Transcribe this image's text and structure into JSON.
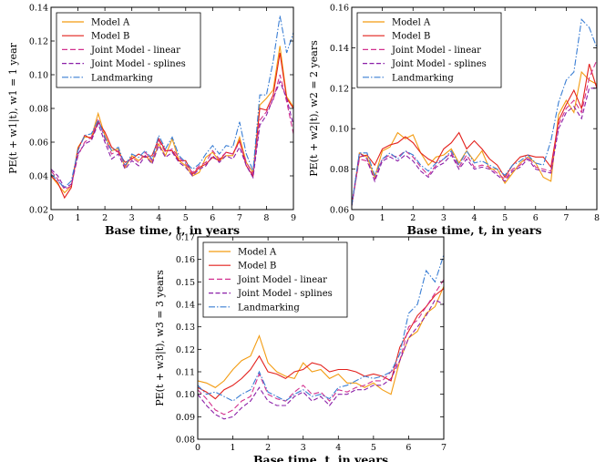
{
  "figure": {
    "style": {
      "colors": {
        "Model A": "#f39c12",
        "Model B": "#e3201c",
        "Joint Model - linear": "#d2318f",
        "Joint Model - splines": "#8b1fa8",
        "Landmarking": "#3a7ed4"
      },
      "dashes": {
        "Model A": "",
        "Model B": "",
        "Joint Model - linear": "6,3",
        "Joint Model - splines": "5,2.5",
        "Landmarking": "7,2,1.5,2"
      }
    }
  },
  "chart_data": [
    {
      "type": "line",
      "xlabel": "Base time, t, in years",
      "ylabel": "PE(t + w1|t), w1 = 1 year",
      "xlim": [
        0,
        9
      ],
      "ylim": [
        0.02,
        0.14
      ],
      "xticks": [
        "0",
        "1",
        "2",
        "3",
        "4",
        "5",
        "6",
        "7",
        "8",
        "9"
      ],
      "yticks": [
        "0.02",
        "0.04",
        "0.06",
        "0.08",
        "0.10",
        "0.12",
        "0.14"
      ],
      "legend": "top-left",
      "x": [
        0,
        0.25,
        0.5,
        0.75,
        1,
        1.25,
        1.5,
        1.75,
        2,
        2.25,
        2.5,
        2.75,
        3,
        3.25,
        3.5,
        3.75,
        4,
        4.25,
        4.5,
        4.75,
        5,
        5.25,
        5.5,
        5.75,
        6,
        6.25,
        6.5,
        6.75,
        7,
        7.25,
        7.5,
        7.75,
        8,
        8.25,
        8.5,
        8.75,
        9
      ],
      "series": [
        {
          "name": "Model A",
          "values": [
            0.04,
            0.035,
            0.03,
            0.034,
            0.057,
            0.063,
            0.063,
            0.077,
            0.064,
            0.055,
            0.056,
            0.045,
            0.052,
            0.049,
            0.052,
            0.048,
            0.059,
            0.052,
            0.062,
            0.049,
            0.046,
            0.04,
            0.042,
            0.051,
            0.054,
            0.049,
            0.052,
            0.052,
            0.063,
            0.048,
            0.042,
            0.082,
            0.086,
            0.091,
            0.117,
            0.087,
            0.081
          ]
        },
        {
          "name": "Model B",
          "values": [
            0.04,
            0.036,
            0.027,
            0.033,
            0.056,
            0.064,
            0.062,
            0.072,
            0.066,
            0.057,
            0.054,
            0.048,
            0.05,
            0.053,
            0.051,
            0.052,
            0.062,
            0.055,
            0.055,
            0.049,
            0.049,
            0.041,
            0.045,
            0.047,
            0.051,
            0.049,
            0.054,
            0.053,
            0.061,
            0.046,
            0.04,
            0.08,
            0.079,
            0.088,
            0.113,
            0.086,
            0.08
          ]
        },
        {
          "name": "Joint Model - linear",
          "values": [
            0.043,
            0.038,
            0.032,
            0.034,
            0.052,
            0.06,
            0.063,
            0.074,
            0.062,
            0.053,
            0.055,
            0.046,
            0.051,
            0.048,
            0.054,
            0.049,
            0.061,
            0.054,
            0.056,
            0.051,
            0.047,
            0.042,
            0.046,
            0.048,
            0.055,
            0.05,
            0.054,
            0.053,
            0.06,
            0.048,
            0.041,
            0.073,
            0.078,
            0.085,
            0.1,
            0.084,
            0.065
          ]
        },
        {
          "name": "Joint Model - splines",
          "values": [
            0.044,
            0.04,
            0.033,
            0.035,
            0.053,
            0.059,
            0.061,
            0.071,
            0.06,
            0.05,
            0.053,
            0.044,
            0.049,
            0.046,
            0.052,
            0.047,
            0.058,
            0.051,
            0.054,
            0.048,
            0.045,
            0.04,
            0.044,
            0.046,
            0.052,
            0.048,
            0.052,
            0.05,
            0.057,
            0.046,
            0.039,
            0.07,
            0.076,
            0.086,
            0.096,
            0.086,
            0.07
          ]
        },
        {
          "name": "Landmarking",
          "values": [
            0.041,
            0.037,
            0.033,
            0.037,
            0.055,
            0.064,
            0.065,
            0.073,
            0.063,
            0.055,
            0.057,
            0.046,
            0.053,
            0.051,
            0.055,
            0.05,
            0.064,
            0.056,
            0.063,
            0.052,
            0.048,
            0.044,
            0.047,
            0.053,
            0.058,
            0.053,
            0.058,
            0.057,
            0.072,
            0.053,
            0.043,
            0.088,
            0.088,
            0.108,
            0.135,
            0.113,
            0.125
          ]
        }
      ]
    },
    {
      "type": "line",
      "xlabel": "Base time, t, in years",
      "ylabel": "PE(t + w2|t), w2 = 2 years",
      "xlim": [
        0,
        8
      ],
      "ylim": [
        0.06,
        0.16
      ],
      "xticks": [
        "0",
        "1",
        "2",
        "3",
        "4",
        "5",
        "6",
        "7",
        "8"
      ],
      "yticks": [
        "0.06",
        "0.08",
        "0.10",
        "0.12",
        "0.14",
        "0.16"
      ],
      "legend": "top-left",
      "x": [
        0,
        0.25,
        0.5,
        0.75,
        1,
        1.25,
        1.5,
        1.75,
        2,
        2.25,
        2.5,
        2.75,
        3,
        3.25,
        3.5,
        3.75,
        4,
        4.25,
        4.5,
        4.75,
        5,
        5.25,
        5.5,
        5.75,
        6,
        6.25,
        6.5,
        6.75,
        7,
        7.25,
        7.5,
        7.75,
        8
      ],
      "series": [
        {
          "name": "Model A",
          "values": [
            0.062,
            0.088,
            0.086,
            0.076,
            0.089,
            0.091,
            0.098,
            0.095,
            0.097,
            0.088,
            0.082,
            0.086,
            0.087,
            0.09,
            0.083,
            0.089,
            0.084,
            0.089,
            0.08,
            0.08,
            0.073,
            0.078,
            0.083,
            0.086,
            0.083,
            0.076,
            0.074,
            0.107,
            0.114,
            0.108,
            0.128,
            0.124,
            0.122
          ]
        },
        {
          "name": "Model B",
          "values": [
            0.062,
            0.086,
            0.087,
            0.082,
            0.09,
            0.092,
            0.093,
            0.096,
            0.093,
            0.088,
            0.085,
            0.083,
            0.09,
            0.093,
            0.098,
            0.09,
            0.094,
            0.09,
            0.085,
            0.082,
            0.076,
            0.082,
            0.086,
            0.087,
            0.086,
            0.086,
            0.081,
            0.104,
            0.112,
            0.119,
            0.11,
            0.132,
            0.12
          ]
        },
        {
          "name": "Joint Model - linear",
          "values": [
            0.062,
            0.085,
            0.084,
            0.075,
            0.085,
            0.087,
            0.086,
            0.089,
            0.086,
            0.081,
            0.077,
            0.082,
            0.085,
            0.088,
            0.081,
            0.087,
            0.081,
            0.082,
            0.081,
            0.078,
            0.075,
            0.08,
            0.082,
            0.086,
            0.081,
            0.08,
            0.079,
            0.102,
            0.11,
            0.114,
            0.108,
            0.125,
            0.134
          ]
        },
        {
          "name": "Joint Model - splines",
          "values": [
            0.062,
            0.088,
            0.085,
            0.074,
            0.084,
            0.086,
            0.084,
            0.087,
            0.084,
            0.079,
            0.076,
            0.081,
            0.083,
            0.087,
            0.08,
            0.085,
            0.08,
            0.081,
            0.08,
            0.077,
            0.074,
            0.079,
            0.081,
            0.085,
            0.08,
            0.079,
            0.078,
            0.1,
            0.108,
            0.111,
            0.105,
            0.12,
            0.12
          ]
        },
        {
          "name": "Landmarking",
          "values": [
            0.062,
            0.088,
            0.088,
            0.077,
            0.085,
            0.088,
            0.085,
            0.089,
            0.087,
            0.082,
            0.079,
            0.083,
            0.085,
            0.089,
            0.082,
            0.089,
            0.083,
            0.084,
            0.082,
            0.08,
            0.077,
            0.082,
            0.084,
            0.087,
            0.083,
            0.082,
            0.094,
            0.113,
            0.124,
            0.128,
            0.154,
            0.15,
            0.14
          ]
        }
      ]
    },
    {
      "type": "line",
      "xlabel": "Base time, t, in years",
      "ylabel": "PE(t + w3|t), w3 = 3 years",
      "xlim": [
        0,
        7
      ],
      "ylim": [
        0.08,
        0.17
      ],
      "xticks": [
        "0",
        "1",
        "2",
        "3",
        "4",
        "5",
        "6",
        "7"
      ],
      "yticks": [
        "0.08",
        "0.09",
        "0.10",
        "0.11",
        "0.12",
        "0.13",
        "0.14",
        "0.15",
        "0.16",
        "0.17"
      ],
      "legend": "top-left",
      "x": [
        0,
        0.25,
        0.5,
        0.75,
        1,
        1.25,
        1.5,
        1.75,
        2,
        2.25,
        2.5,
        2.75,
        3,
        3.25,
        3.5,
        3.75,
        4,
        4.25,
        4.5,
        4.75,
        5,
        5.25,
        5.5,
        5.75,
        6,
        6.25,
        6.5,
        6.75,
        7
      ],
      "series": [
        {
          "name": "Model A",
          "values": [
            0.106,
            0.105,
            0.103,
            0.106,
            0.111,
            0.115,
            0.117,
            0.126,
            0.114,
            0.11,
            0.108,
            0.107,
            0.114,
            0.11,
            0.111,
            0.107,
            0.109,
            0.105,
            0.105,
            0.103,
            0.105,
            0.102,
            0.1,
            0.115,
            0.125,
            0.128,
            0.136,
            0.139,
            0.148
          ]
        },
        {
          "name": "Model B",
          "values": [
            0.103,
            0.101,
            0.098,
            0.102,
            0.104,
            0.107,
            0.111,
            0.117,
            0.11,
            0.109,
            0.107,
            0.11,
            0.111,
            0.114,
            0.113,
            0.11,
            0.111,
            0.111,
            0.11,
            0.108,
            0.109,
            0.108,
            0.106,
            0.121,
            0.128,
            0.135,
            0.139,
            0.144,
            0.147
          ]
        },
        {
          "name": "Joint Model - linear",
          "values": [
            0.102,
            0.098,
            0.093,
            0.091,
            0.093,
            0.097,
            0.099,
            0.109,
            0.1,
            0.098,
            0.097,
            0.101,
            0.104,
            0.1,
            0.101,
            0.097,
            0.102,
            0.101,
            0.103,
            0.104,
            0.106,
            0.106,
            0.11,
            0.115,
            0.13,
            0.133,
            0.139,
            0.145,
            0.151
          ]
        },
        {
          "name": "Joint Model - splines",
          "values": [
            0.1,
            0.095,
            0.091,
            0.089,
            0.09,
            0.094,
            0.097,
            0.103,
            0.097,
            0.095,
            0.095,
            0.099,
            0.101,
            0.097,
            0.099,
            0.095,
            0.1,
            0.1,
            0.102,
            0.102,
            0.104,
            0.104,
            0.107,
            0.115,
            0.125,
            0.13,
            0.135,
            0.142,
            0.14
          ]
        },
        {
          "name": "Landmarking",
          "values": [
            0.104,
            0.1,
            0.101,
            0.099,
            0.097,
            0.1,
            0.102,
            0.11,
            0.101,
            0.099,
            0.097,
            0.1,
            0.102,
            0.099,
            0.1,
            0.098,
            0.103,
            0.104,
            0.106,
            0.108,
            0.107,
            0.108,
            0.11,
            0.118,
            0.136,
            0.14,
            0.155,
            0.15,
            0.162
          ]
        }
      ]
    }
  ]
}
